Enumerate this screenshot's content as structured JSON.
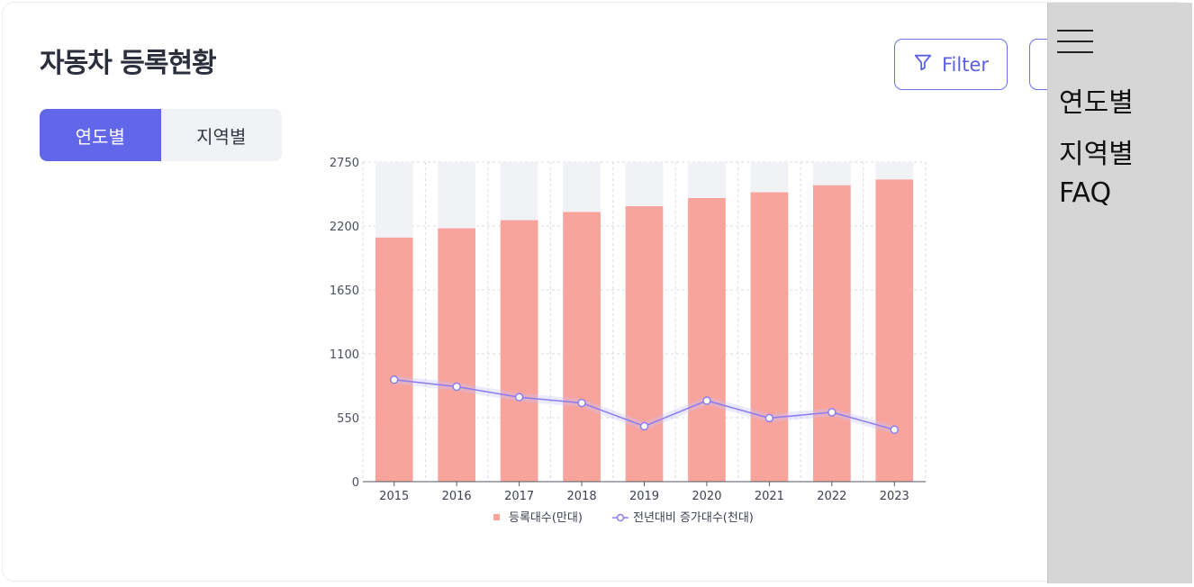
{
  "header": {
    "title": "자동차 등록현황"
  },
  "tabs": [
    {
      "label": "연도별",
      "active": true
    },
    {
      "label": "지역별",
      "active": false
    }
  ],
  "toolbar": {
    "filter_label": "Filter"
  },
  "side_panel": {
    "items": [
      "연도별",
      "지역별",
      "FAQ"
    ]
  },
  "colors": {
    "accent": "#6266e8",
    "bar": "#f8a39b",
    "bar_bg": "#f1f2f6",
    "line": "#8b7cf2",
    "panel": "#d6d6d6"
  },
  "chart_data": {
    "type": "bar",
    "title": "",
    "xlabel": "",
    "ylabel": "",
    "categories": [
      "2015",
      "2016",
      "2017",
      "2018",
      "2019",
      "2020",
      "2021",
      "2022",
      "2023"
    ],
    "ylim": [
      0,
      2750
    ],
    "yticks": [
      0,
      550,
      1100,
      1650,
      2200,
      2750
    ],
    "grid": true,
    "legend_position": "bottom",
    "series": [
      {
        "name": "등록대수(만대)",
        "kind": "bar",
        "values": [
          2100,
          2180,
          2250,
          2320,
          2370,
          2440,
          2490,
          2550,
          2600
        ]
      },
      {
        "name": "전년대비 증가대수(천대)",
        "kind": "line",
        "values": [
          877,
          817,
          727,
          677,
          477,
          697,
          547,
          597,
          447
        ]
      }
    ]
  }
}
